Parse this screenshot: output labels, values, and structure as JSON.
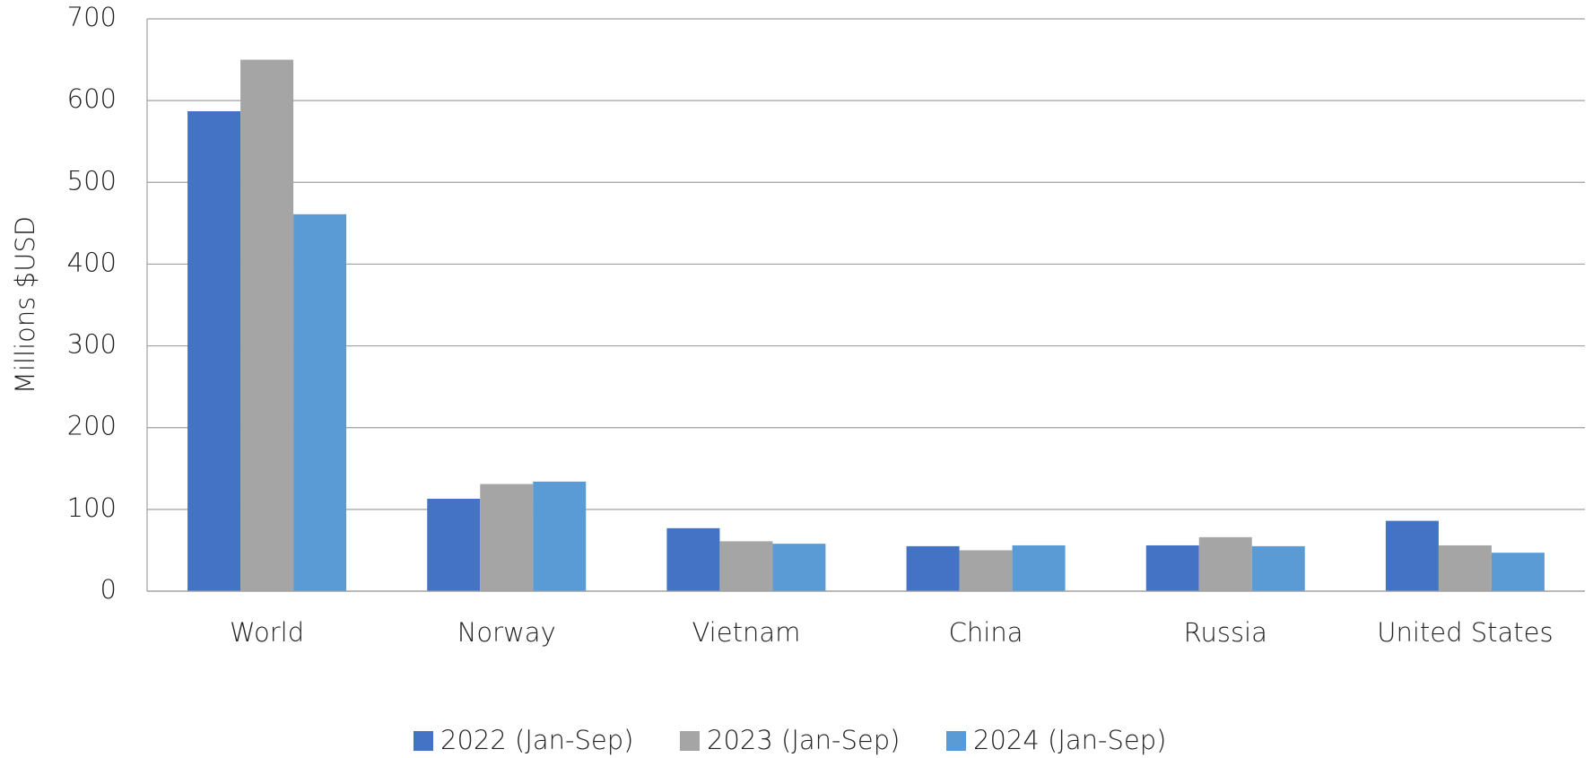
{
  "chart_data": {
    "type": "bar",
    "y_label": "Millions $USD",
    "categories": [
      "World",
      "Norway",
      "Vietnam",
      "China",
      "Russia",
      "United States"
    ],
    "series": [
      {
        "name": "2022 (Jan-Sep)",
        "color": "#4472c4",
        "values": [
          587,
          113,
          77,
          55,
          56,
          86
        ]
      },
      {
        "name": "2023 (Jan-Sep)",
        "color": "#a5a5a5",
        "values": [
          650,
          131,
          61,
          50,
          66,
          56
        ]
      },
      {
        "name": "2024 (Jan-Sep)",
        "color": "#5b9bd5",
        "values": [
          461,
          134,
          58,
          56,
          55,
          47
        ]
      }
    ],
    "ylim": [
      0,
      700
    ],
    "yticks": [
      0,
      100,
      200,
      300,
      400,
      500,
      600,
      700
    ],
    "grid": true,
    "legend": "bottom"
  }
}
